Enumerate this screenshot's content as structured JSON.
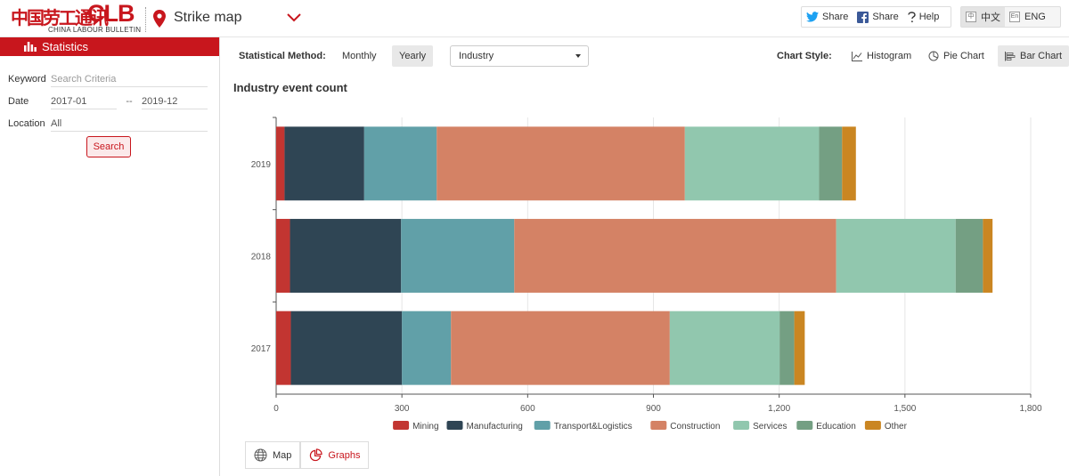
{
  "header": {
    "logo_cn": "中国劳工通讯",
    "logo_en": "CLB",
    "logo_sub": "CHINA LABOUR BULLETIN",
    "title": "Strike map",
    "share_twitter": "Share",
    "share_facebook": "Share",
    "help": "Help",
    "lang_cn": "中文",
    "lang_en": "ENG",
    "lang_cn_icon": "中",
    "lang_en_icon": "En"
  },
  "sidebar": {
    "title": "Statistics",
    "keyword_label": "Keyword",
    "keyword_placeholder": "Search Criteria",
    "date_label": "Date",
    "date_from": "2017-01",
    "date_sep": "--",
    "date_to": "2019-12",
    "location_label": "Location",
    "location_value": "All",
    "search_button": "Search"
  },
  "toolbar": {
    "method_label": "Statistical Method:",
    "monthly": "Monthly",
    "yearly": "Yearly",
    "category": "Industry",
    "style_label": "Chart Style:",
    "histogram": "Histogram",
    "pie_chart": "Pie Chart",
    "bar_chart": "Bar Chart"
  },
  "view": {
    "map": "Map",
    "graphs": "Graphs"
  },
  "colors": {
    "brand": "#c8161d"
  },
  "chart_data": {
    "type": "bar",
    "orientation": "horizontal",
    "stacked": true,
    "title": "Industry event count",
    "categories": [
      "2019",
      "2018",
      "2017"
    ],
    "series": [
      {
        "name": "Mining",
        "color": "#c23531",
        "values": [
          20,
          33,
          35
        ]
      },
      {
        "name": "Manufacturing",
        "color": "#2f4554",
        "values": [
          190,
          265,
          265
        ]
      },
      {
        "name": "Transport&Logistics",
        "color": "#61a0a8",
        "values": [
          173,
          270,
          117
        ]
      },
      {
        "name": "Construction",
        "color": "#d48265",
        "values": [
          592,
          768,
          522
        ]
      },
      {
        "name": "Services",
        "color": "#91c7ae",
        "values": [
          320,
          285,
          262
        ]
      },
      {
        "name": "Education",
        "color": "#749f83",
        "values": [
          55,
          65,
          35
        ]
      },
      {
        "name": "Other",
        "color": "#ca8622",
        "values": [
          33,
          23,
          25
        ]
      }
    ],
    "xlim": [
      0,
      1800
    ],
    "xticks": [
      "0",
      "300",
      "600",
      "900",
      "1,200",
      "1,500",
      "1,800"
    ],
    "grid": true,
    "legend": "bottom"
  }
}
